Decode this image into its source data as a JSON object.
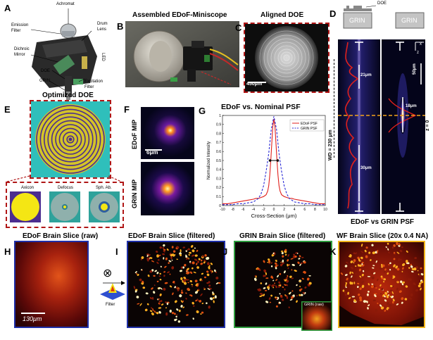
{
  "panels": {
    "A": {
      "letter": "A",
      "labels": {
        "achromat": "Achromat",
        "emission": "Emission\nFilter",
        "dichroic": "Dichroic\nMirror",
        "drum": "Drum\nLens",
        "led": "LED",
        "doe": "DOE",
        "grin": "GRIN",
        "excitation": "Excitation\nFilter"
      }
    },
    "B": {
      "letter": "B",
      "title": "Assembled EDoF-Miniscope"
    },
    "C": {
      "letter": "C",
      "title": "Aligned DOE",
      "scalebar": "450μm"
    },
    "D": {
      "letter": "D",
      "doe_label": "DOE",
      "grin_left": "GRIN",
      "grin_right": "GRIN",
      "wd_label": "WD = 230 μm",
      "z0_label": "z = 0",
      "m21": "21μm",
      "m18": "18μm",
      "m30": "30μm",
      "scalebar": "50μm",
      "axis_x": "x",
      "axis_z": "z",
      "caption": "EDoF vs GRIN PSF"
    },
    "E": {
      "letter": "E",
      "title": "Optimized DOE",
      "sub": [
        "Axicon",
        "Defocus",
        "Sph. Ab."
      ]
    },
    "F": {
      "letter": "F",
      "edof_label": "EDoF MIP",
      "grin_label": "GRIN MIP",
      "scalebar": "6μm"
    },
    "G": {
      "letter": "G",
      "title": "EDoF  vs. Nominal PSF"
    },
    "H": {
      "letter": "H",
      "title": "EDoF Brain Slice (raw)",
      "scalebar": "130μm"
    },
    "I": {
      "letter": "I",
      "title": "EDoF Brain Slice (filtered)",
      "filter_label": "Filter",
      "conv_symbol": "⊗"
    },
    "J": {
      "letter": "J",
      "title": "GRIN Brain Slice (filtered)",
      "inset_label": "GRIN (raw)"
    },
    "K": {
      "letter": "K",
      "title": "WF Brain Slice (20x 0.4 NA)"
    }
  },
  "colors": {
    "dash_red": "#b01616",
    "edof_red": "#e0201c",
    "grin_blue": "#2b2bd6",
    "border_blue": "#1f2fa8",
    "border_green": "#2e9c3e",
    "border_yellow": "#f2b51c",
    "orange": "#f5a31a"
  },
  "chart_data": {
    "type": "line",
    "title": "EDoF  vs. Nominal PSF",
    "xlabel": "Cross-Section (μm)",
    "ylabel": "Normalized Intensity",
    "xlim": [
      -10,
      10
    ],
    "ylim": [
      0,
      1
    ],
    "xticks": [
      "-10",
      "-8",
      "-6",
      "-4",
      "-2",
      "0",
      "2",
      "4",
      "6",
      "8",
      "10"
    ],
    "yticks": [
      "0",
      "0.1",
      "0.2",
      "0.3",
      "0.4",
      "0.5",
      "0.6",
      "0.7",
      "0.8",
      "0.9",
      "1"
    ],
    "legend_position": "top-right",
    "annotation": "FWHM arrows at y = 0.5",
    "series": [
      {
        "name": "EDoF PSF",
        "color": "#e0201c",
        "dash": "solid",
        "x": [
          -10,
          -9,
          -8,
          -7,
          -6,
          -5,
          -4,
          -3.5,
          -3,
          -2.5,
          -2,
          -1.5,
          -1.2,
          -1,
          -0.8,
          -0.6,
          -0.4,
          -0.2,
          0,
          0.2,
          0.4,
          0.6,
          0.8,
          1,
          1.2,
          1.5,
          2,
          2.5,
          3,
          3.5,
          4,
          5,
          6,
          7,
          8,
          9,
          10
        ],
        "y": [
          0.02,
          0.02,
          0.03,
          0.04,
          0.05,
          0.06,
          0.07,
          0.08,
          0.08,
          0.09,
          0.1,
          0.12,
          0.16,
          0.22,
          0.34,
          0.5,
          0.7,
          0.88,
          0.96,
          0.88,
          0.7,
          0.5,
          0.34,
          0.22,
          0.16,
          0.12,
          0.1,
          0.09,
          0.08,
          0.08,
          0.07,
          0.06,
          0.05,
          0.04,
          0.03,
          0.02,
          0.02
        ]
      },
      {
        "name": "GRIN PSF",
        "color": "#2b2bd6",
        "dash": "dashed",
        "x": [
          -10,
          -9,
          -8,
          -7,
          -6,
          -5,
          -4,
          -3,
          -2.5,
          -2,
          -1.5,
          -1,
          -0.5,
          0,
          0.5,
          1,
          1.5,
          2,
          2.5,
          3,
          4,
          5,
          6,
          7,
          8,
          9,
          10
        ],
        "y": [
          0.01,
          0.01,
          0.01,
          0.02,
          0.02,
          0.03,
          0.04,
          0.08,
          0.13,
          0.22,
          0.38,
          0.58,
          0.85,
          0.99,
          0.85,
          0.58,
          0.38,
          0.22,
          0.13,
          0.08,
          0.04,
          0.03,
          0.02,
          0.02,
          0.01,
          0.01,
          0.01
        ]
      }
    ]
  }
}
